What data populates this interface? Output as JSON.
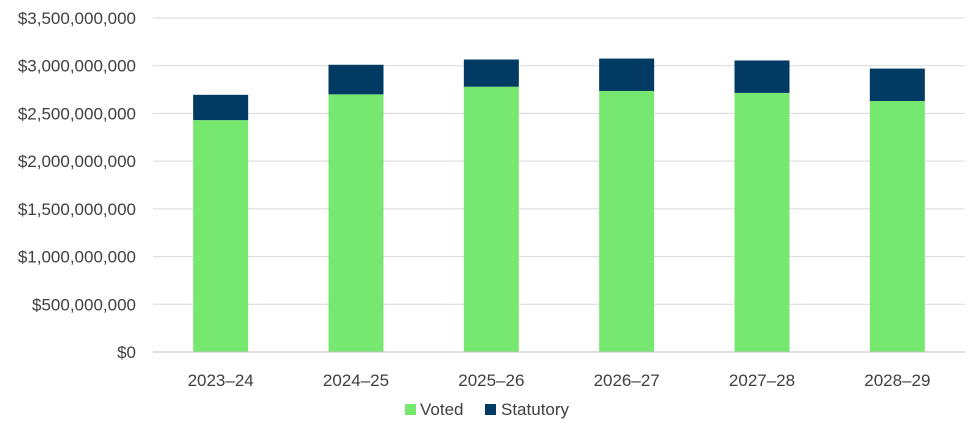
{
  "chart_data": {
    "type": "bar",
    "stacked": true,
    "title": "",
    "xlabel": "",
    "ylabel": "",
    "categories": [
      "2023–24",
      "2024–25",
      "2025–26",
      "2026–27",
      "2027–28",
      "2028–29"
    ],
    "series": [
      {
        "name": "Voted",
        "color": "#77e86f",
        "values": [
          2430000000,
          2700000000,
          2780000000,
          2735000000,
          2715000000,
          2630000000
        ]
      },
      {
        "name": "Statutory",
        "color": "#013a63",
        "values": [
          265000000,
          310000000,
          285000000,
          340000000,
          340000000,
          340000000
        ]
      }
    ],
    "ylim": [
      0,
      3500000000
    ],
    "yticks": [
      0,
      500000000,
      1000000000,
      1500000000,
      2000000000,
      2500000000,
      3000000000,
      3500000000
    ],
    "ytick_labels": [
      "$0",
      "$500,000,000",
      "$1,000,000,000",
      "$1,500,000,000",
      "$2,000,000,000",
      "$2,500,000,000",
      "$3,000,000,000",
      "$3,500,000,000"
    ],
    "grid": true,
    "legend_position": "bottom",
    "gridline_color": "#d9d9d9",
    "axis_line_color": "#bfbfbf"
  }
}
